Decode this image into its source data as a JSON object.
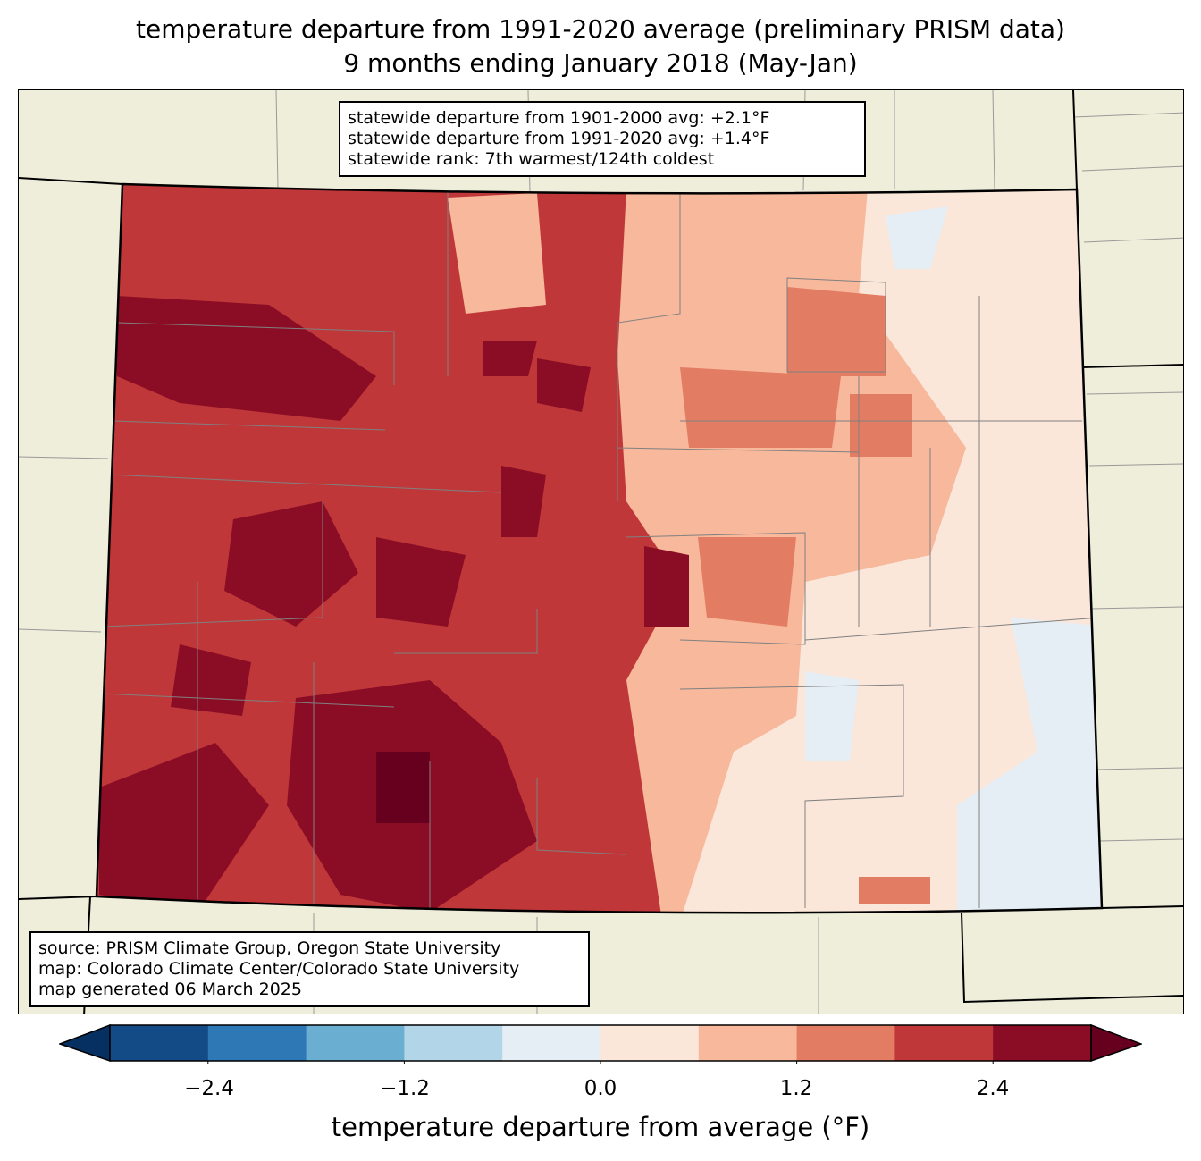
{
  "title": {
    "line1": "temperature departure from 1991-2020 average (preliminary PRISM data)",
    "line2": "9 months ending January 2018 (May-Jan)"
  },
  "stats_box": {
    "line1": "statewide departure from 1901-2000 avg: +2.1°F",
    "line2": "statewide departure from 1991-2020 avg: +1.4°F",
    "line3": "statewide rank: 7th warmest/124th coldest"
  },
  "source_box": {
    "line1": "source: PRISM Climate Group, Oregon State University",
    "line2": "map: Colorado Climate Center/Colorado State University",
    "line3": "map generated 06 March 2025"
  },
  "colorbar": {
    "label": "temperature departure from average (°F)",
    "ticks": [
      "−2.4",
      "−1.2",
      "0.0",
      "1.2",
      "2.4"
    ],
    "tick_values": [
      -2.4,
      -1.2,
      0.0,
      1.2,
      2.4
    ],
    "range": [
      -3.0,
      3.0
    ],
    "step": 0.6,
    "under_color": "#053061",
    "over_color": "#67001f",
    "colors": [
      "#134b87",
      "#2e78b5",
      "#6aaed2",
      "#b2d6e8",
      "#e5eef4",
      "#fbe6da",
      "#f7b89b",
      "#e27c63",
      "#c0373a",
      "#8b0d25"
    ]
  },
  "map_colors": {
    "land": "#efeedb",
    "border": "#000000",
    "county": "#808080"
  }
}
